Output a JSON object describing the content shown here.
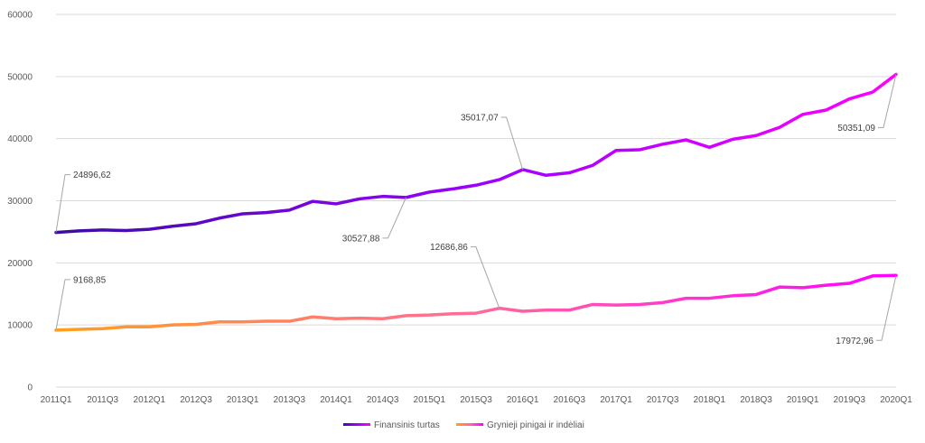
{
  "chart_data": {
    "type": "line",
    "x": [
      "2011Q1",
      "2011Q2",
      "2011Q3",
      "2011Q4",
      "2012Q1",
      "2012Q2",
      "2012Q3",
      "2012Q4",
      "2013Q1",
      "2013Q2",
      "2013Q3",
      "2013Q4",
      "2014Q1",
      "2014Q2",
      "2014Q3",
      "2014Q4",
      "2015Q1",
      "2015Q2",
      "2015Q3",
      "2015Q4",
      "2016Q1",
      "2016Q2",
      "2016Q3",
      "2016Q4",
      "2017Q1",
      "2017Q2",
      "2017Q3",
      "2017Q4",
      "2018Q1",
      "2018Q2",
      "2018Q3",
      "2018Q4",
      "2019Q1",
      "2019Q2",
      "2019Q3",
      "2019Q4",
      "2020Q1"
    ],
    "x_tick_labels": [
      "2011Q1",
      "2011Q3",
      "2012Q1",
      "2012Q3",
      "2013Q1",
      "2013Q3",
      "2014Q1",
      "2014Q3",
      "2015Q1",
      "2015Q3",
      "2016Q1",
      "2016Q3",
      "2017Q1",
      "2017Q3",
      "2018Q1",
      "2018Q3",
      "2019Q1",
      "2019Q3",
      "2020Q1"
    ],
    "y_ticks": [
      "0",
      "10000",
      "20000",
      "30000",
      "40000",
      "50000",
      "60000"
    ],
    "ylim": [
      0,
      60000
    ],
    "grid": "horizontal",
    "legend_position": "bottom",
    "series": [
      {
        "name": "Finansinis turtas",
        "gradient": [
          "#3a0ca3",
          "#9b00ff",
          "#ff00ff"
        ],
        "values": [
          24896.62,
          25150,
          25300,
          25200,
          25400,
          25900,
          26300,
          27200,
          27900,
          28100,
          28500,
          29900,
          29500,
          30300,
          30700,
          30527.88,
          31400,
          31900,
          32500,
          33400,
          35017.07,
          34100,
          34500,
          35700,
          38100,
          38200,
          39100,
          39800,
          38600,
          39900,
          40500,
          41800,
          43900,
          44600,
          46400,
          47500,
          50351.09
        ]
      },
      {
        "name": "Grynieji pinigai ir indėliai",
        "gradient": [
          "#ff9f1c",
          "#ff6b9a",
          "#ff00ff"
        ],
        "values": [
          9168.85,
          9300,
          9400,
          9700,
          9700,
          10000,
          10100,
          10500,
          10500,
          10600,
          10600,
          11300,
          11000,
          11100,
          11000,
          11500,
          11600,
          11800,
          11900,
          12686.86,
          12200,
          12400,
          12400,
          13300,
          13200,
          13300,
          13600,
          14300,
          14300,
          14700,
          14900,
          16100,
          16000,
          16400,
          16700,
          17900,
          17972.96
        ]
      }
    ],
    "annotations": [
      {
        "series": 0,
        "index": 0,
        "label": "24896,62"
      },
      {
        "series": 0,
        "index": 15,
        "label": "30527,88"
      },
      {
        "series": 0,
        "index": 20,
        "label": "35017,07"
      },
      {
        "series": 0,
        "index": 36,
        "label": "50351,09"
      },
      {
        "series": 1,
        "index": 0,
        "label": "9168,85"
      },
      {
        "series": 1,
        "index": 19,
        "label": "12686,86"
      },
      {
        "series": 1,
        "index": 36,
        "label": "17972,96"
      }
    ]
  }
}
